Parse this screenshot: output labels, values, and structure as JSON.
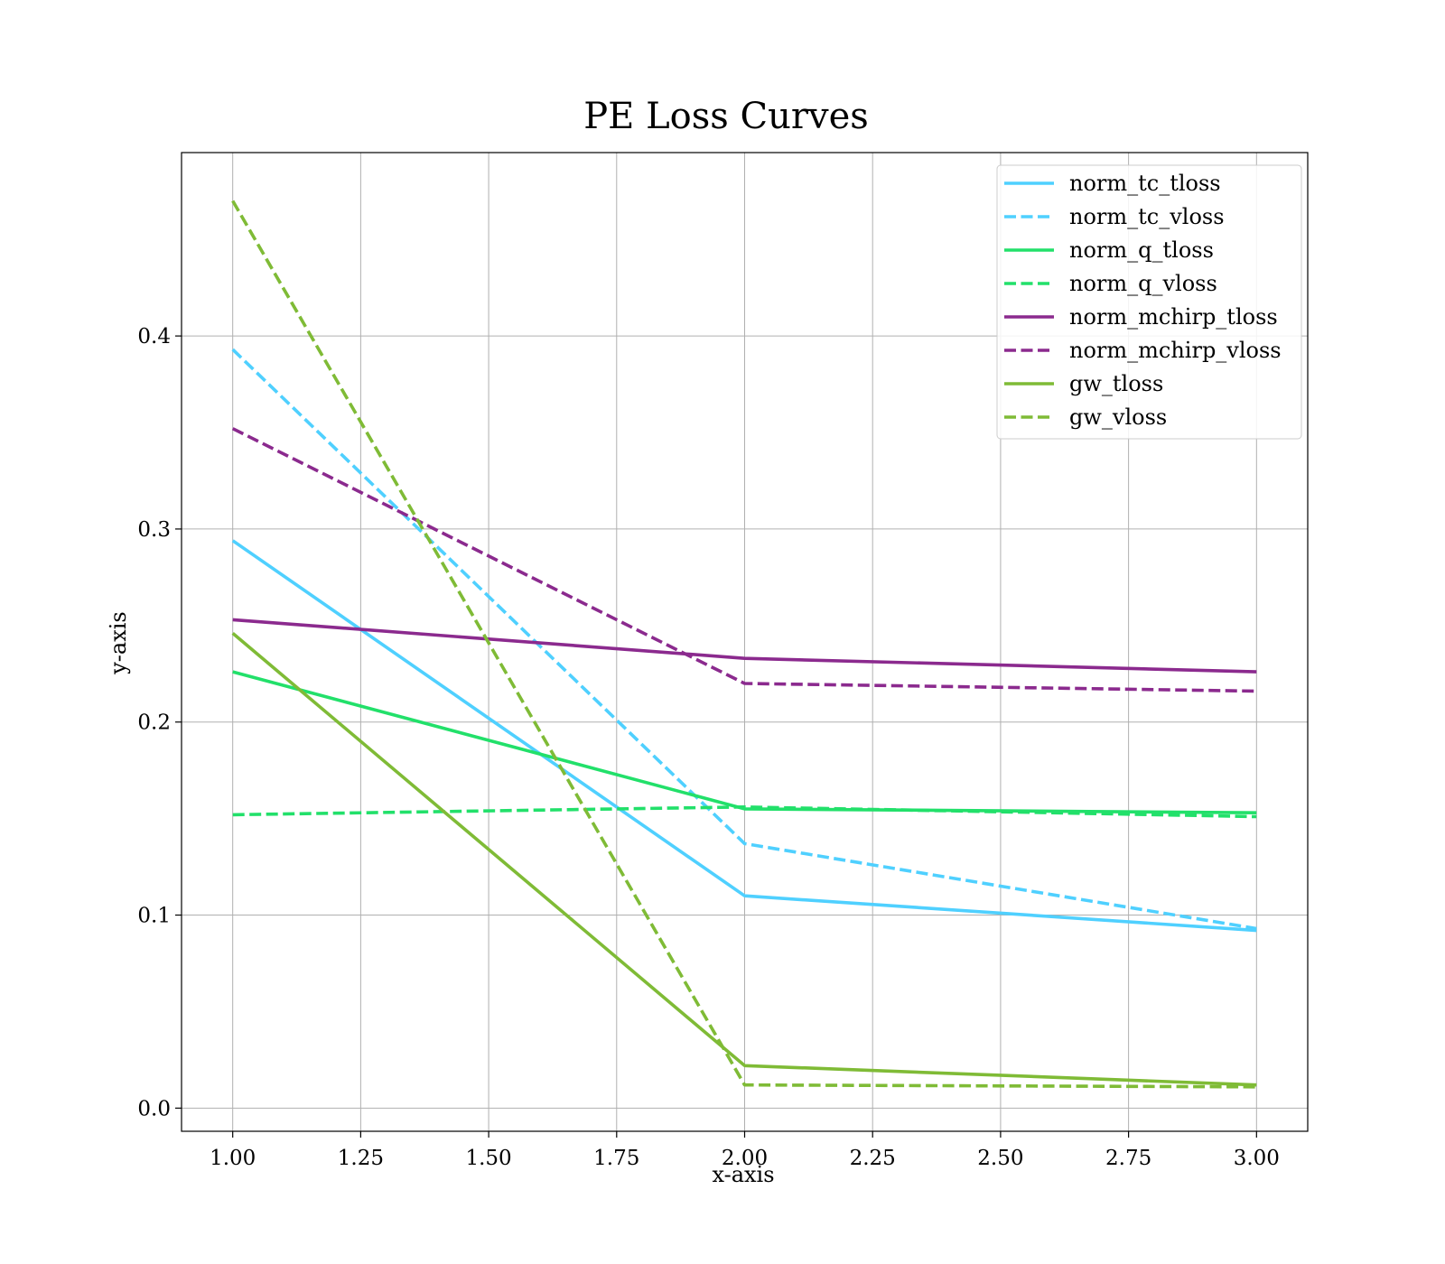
{
  "chart_data": {
    "type": "line",
    "title": "PE Loss Curves",
    "xlabel": "x-axis",
    "ylabel": "y-axis",
    "xlim": [
      0.9,
      3.1
    ],
    "ylim": [
      -0.012,
      0.495
    ],
    "grid": true,
    "legend_position": "top-right",
    "x_ticks": [
      1.0,
      1.25,
      1.5,
      1.75,
      2.0,
      2.25,
      2.5,
      2.75,
      3.0
    ],
    "x_tick_labels": [
      "1.00",
      "1.25",
      "1.50",
      "1.75",
      "2.00",
      "2.25",
      "2.50",
      "2.75",
      "3.00"
    ],
    "y_ticks": [
      0.0,
      0.1,
      0.2,
      0.3,
      0.4
    ],
    "y_tick_labels": [
      "0.0",
      "0.1",
      "0.2",
      "0.3",
      "0.4"
    ],
    "x": [
      1,
      2,
      3
    ],
    "series": [
      {
        "name": "norm_tc_tloss",
        "values": [
          0.294,
          0.11,
          0.092
        ],
        "color": "#4fd0ff",
        "style": "solid"
      },
      {
        "name": "norm_tc_vloss",
        "values": [
          0.393,
          0.137,
          0.093
        ],
        "color": "#4fd0ff",
        "style": "dashed"
      },
      {
        "name": "norm_q_tloss",
        "values": [
          0.226,
          0.155,
          0.153
        ],
        "color": "#22e06a",
        "style": "solid"
      },
      {
        "name": "norm_q_vloss",
        "values": [
          0.152,
          0.156,
          0.151
        ],
        "color": "#22e06a",
        "style": "dashed"
      },
      {
        "name": "norm_mchirp_tloss",
        "values": [
          0.253,
          0.233,
          0.226
        ],
        "color": "#8b2a8e",
        "style": "solid"
      },
      {
        "name": "norm_mchirp_vloss",
        "values": [
          0.352,
          0.22,
          0.216
        ],
        "color": "#8b2a8e",
        "style": "dashed"
      },
      {
        "name": "gw_tloss",
        "values": [
          0.246,
          0.022,
          0.012
        ],
        "color": "#7fbb36",
        "style": "solid"
      },
      {
        "name": "gw_vloss",
        "values": [
          0.47,
          0.012,
          0.011
        ],
        "color": "#7fbb36",
        "style": "dashed"
      }
    ]
  }
}
